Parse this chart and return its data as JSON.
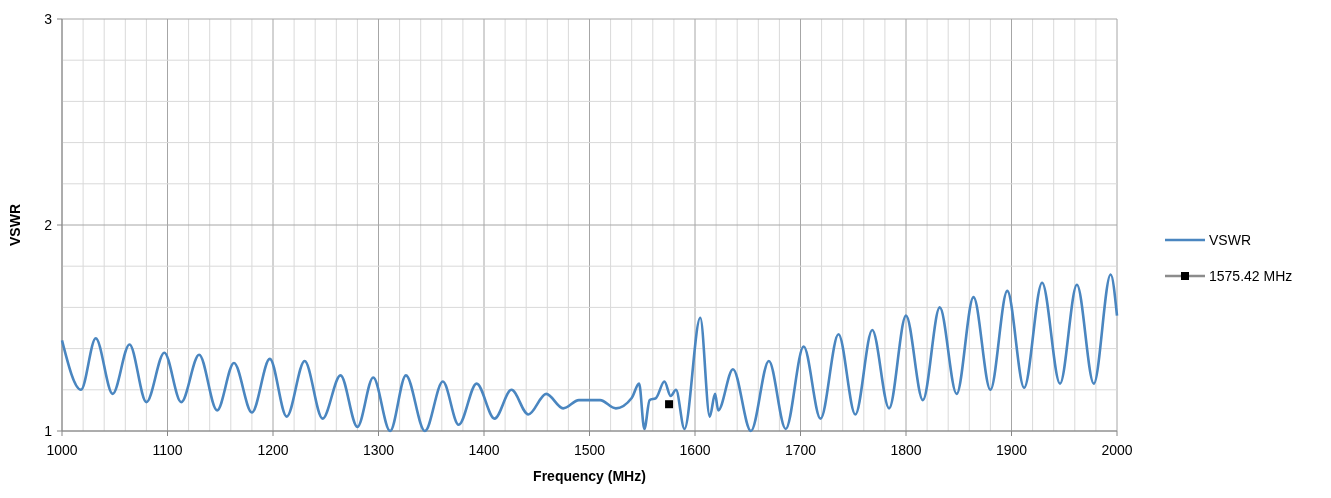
{
  "chart_data": {
    "type": "line",
    "xlabel": "Frequency (MHz)",
    "ylabel": "VSWR",
    "xlim": [
      1000,
      2000
    ],
    "xticks": [
      1000,
      {
        "value": 1020,
        "label": null
      },
      {
        "value": 1040,
        "label": null
      },
      {
        "value": 1060,
        "label": null
      },
      {
        "value": 1080,
        "label": null
      },
      1100,
      {
        "value": 1120,
        "label": null
      },
      {
        "value": 1140,
        "label": null
      },
      {
        "value": 1160,
        "label": null
      },
      {
        "value": 1180,
        "label": null
      },
      1200,
      {
        "value": 1220,
        "label": null
      },
      {
        "value": 1240,
        "label": null
      },
      {
        "value": 1260,
        "label": null
      },
      {
        "value": 1280,
        "label": null
      },
      1300,
      {
        "value": 1320,
        "label": null
      },
      {
        "value": 1340,
        "label": null
      },
      {
        "value": 1360,
        "label": null
      },
      {
        "value": 1380,
        "label": null
      },
      1400,
      {
        "value": 1420,
        "label": null
      },
      {
        "value": 1440,
        "label": null
      },
      {
        "value": 1460,
        "label": null
      },
      {
        "value": 1480,
        "label": null
      },
      1500,
      {
        "value": 1520,
        "label": null
      },
      {
        "value": 1540,
        "label": null
      },
      {
        "value": 1560,
        "label": null
      },
      {
        "value": 1580,
        "label": null
      },
      1600,
      {
        "value": 1620,
        "label": null
      },
      {
        "value": 1640,
        "label": null
      },
      {
        "value": 1660,
        "label": null
      },
      {
        "value": 1680,
        "label": null
      },
      1700,
      {
        "value": 1720,
        "label": null
      },
      {
        "value": 1740,
        "label": null
      },
      {
        "value": 1760,
        "label": null
      },
      {
        "value": 1780,
        "label": null
      },
      1800,
      {
        "value": 1820,
        "label": null
      },
      {
        "value": 1840,
        "label": null
      },
      {
        "value": 1860,
        "label": null
      },
      {
        "value": 1880,
        "label": null
      },
      1900,
      {
        "value": 1920,
        "label": null
      },
      {
        "value": 1940,
        "label": null
      },
      {
        "value": 1960,
        "label": null
      },
      {
        "value": 1980,
        "label": null
      },
      2000
    ],
    "ylim": [
      1,
      3
    ],
    "yticks": [
      1,
      {
        "value": 1.2,
        "label": null
      },
      {
        "value": 1.4,
        "label": null
      },
      {
        "value": 1.6,
        "label": null
      },
      {
        "value": 1.8,
        "label": null
      },
      2,
      {
        "value": 2.2,
        "label": null
      },
      {
        "value": 2.4,
        "label": null
      },
      {
        "value": 2.6,
        "label": null
      },
      {
        "value": 2.8,
        "label": null
      },
      3
    ],
    "grid": true,
    "legend": "right",
    "line_style": "solid",
    "series": [
      {
        "name": "VSWR",
        "color": "#4a86c0",
        "marker": "none",
        "x": [
          1000,
          1018,
          1032,
          1048,
          1064,
          1080,
          1097,
          1113,
          1130,
          1147,
          1163,
          1180,
          1197,
          1213,
          1230,
          1247,
          1264,
          1280,
          1295,
          1311,
          1326,
          1344,
          1361,
          1376,
          1393,
          1410,
          1426,
          1442,
          1459,
          1475,
          1490,
          1500,
          1510,
          1525,
          1540,
          1547,
          1552,
          1557,
          1563,
          1571,
          1577,
          1582,
          1590,
          1605,
          1614,
          1619,
          1622,
          1636,
          1653,
          1670,
          1686,
          1703,
          1719,
          1736,
          1752,
          1768,
          1784,
          1800,
          1816,
          1832,
          1848,
          1864,
          1880,
          1896,
          1912,
          1929,
          1946,
          1962,
          1978,
          1994,
          2000
        ],
        "values": [
          1.44,
          1.2,
          1.45,
          1.18,
          1.42,
          1.14,
          1.38,
          1.14,
          1.37,
          1.1,
          1.33,
          1.09,
          1.35,
          1.07,
          1.34,
          1.06,
          1.27,
          1.02,
          1.26,
          1.0,
          1.27,
          1.0,
          1.24,
          1.03,
          1.23,
          1.06,
          1.2,
          1.08,
          1.18,
          1.11,
          1.15,
          1.15,
          1.15,
          1.11,
          1.16,
          1.23,
          1.01,
          1.15,
          1.16,
          1.24,
          1.17,
          1.2,
          1.01,
          1.55,
          1.07,
          1.18,
          1.1,
          1.3,
          1.0,
          1.34,
          1.01,
          1.41,
          1.06,
          1.47,
          1.08,
          1.49,
          1.11,
          1.56,
          1.15,
          1.6,
          1.18,
          1.65,
          1.2,
          1.68,
          1.21,
          1.72,
          1.23,
          1.71,
          1.23,
          1.76,
          1.56
        ]
      },
      {
        "name": "1575.42 MHz",
        "color": "#000000",
        "type": "scatter",
        "marker": "square",
        "x": [
          1575.42
        ],
        "values": [
          1.13
        ]
      }
    ]
  }
}
